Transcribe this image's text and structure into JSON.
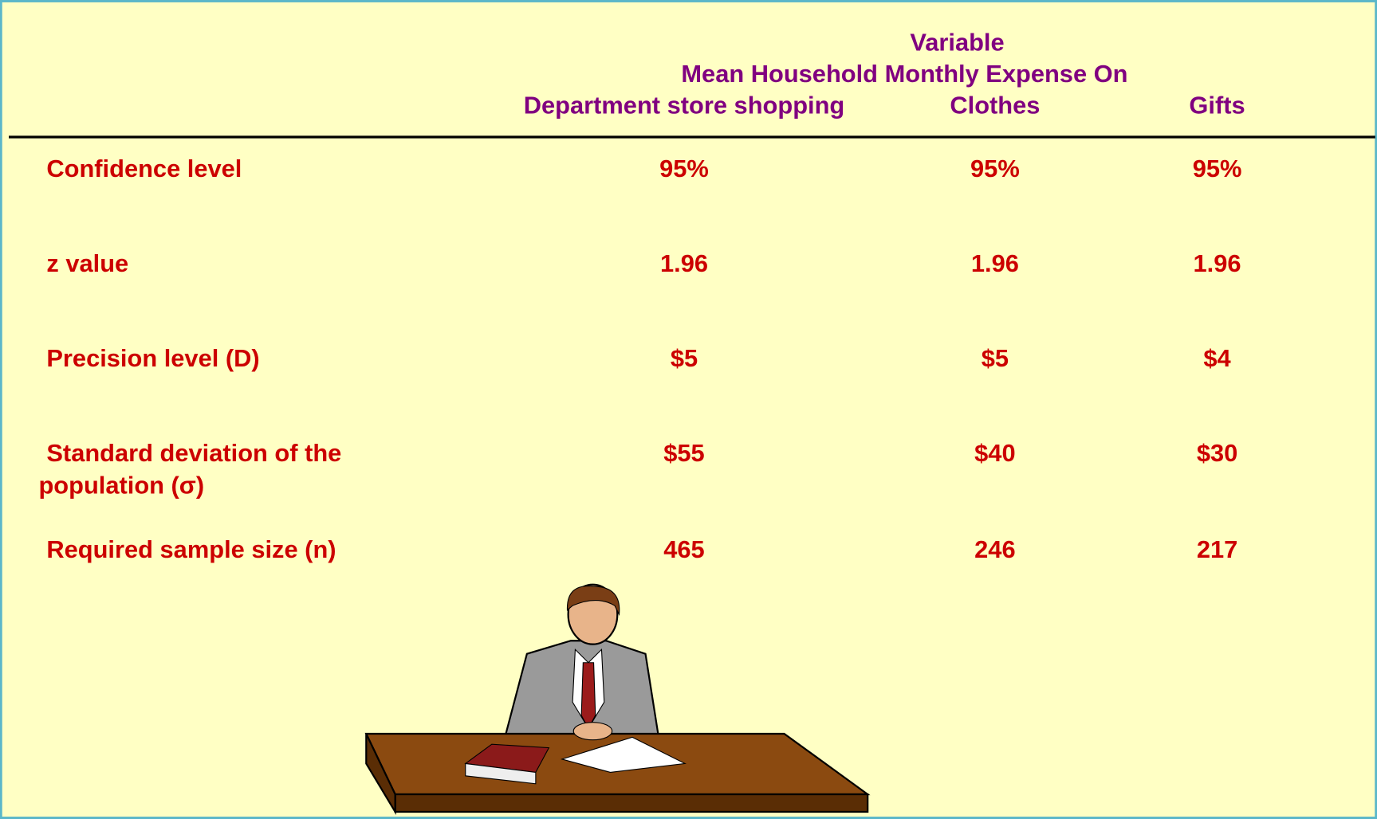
{
  "header": {
    "title": "Variable",
    "subtitle": "Mean Household Monthly Expense On",
    "columns": [
      "Department store shopping",
      "Clothes",
      "Gifts"
    ]
  },
  "table": {
    "rows": [
      {
        "label": [
          "Confidence level"
        ],
        "values": [
          "95%",
          "95%",
          "95%"
        ]
      },
      {
        "label": [
          "z value"
        ],
        "values": [
          "1.96",
          "1.96",
          "1.96"
        ]
      },
      {
        "label": [
          "Precision level (D)"
        ],
        "values": [
          "$5",
          "$5",
          "$4"
        ]
      },
      {
        "label": [
          "Standard deviation of the",
          "population (σ)"
        ],
        "values": [
          "$55",
          "$40",
          "$30"
        ]
      },
      {
        "label": [
          "Required sample size (n)"
        ],
        "values": [
          "465",
          "246",
          "217"
        ]
      }
    ]
  }
}
